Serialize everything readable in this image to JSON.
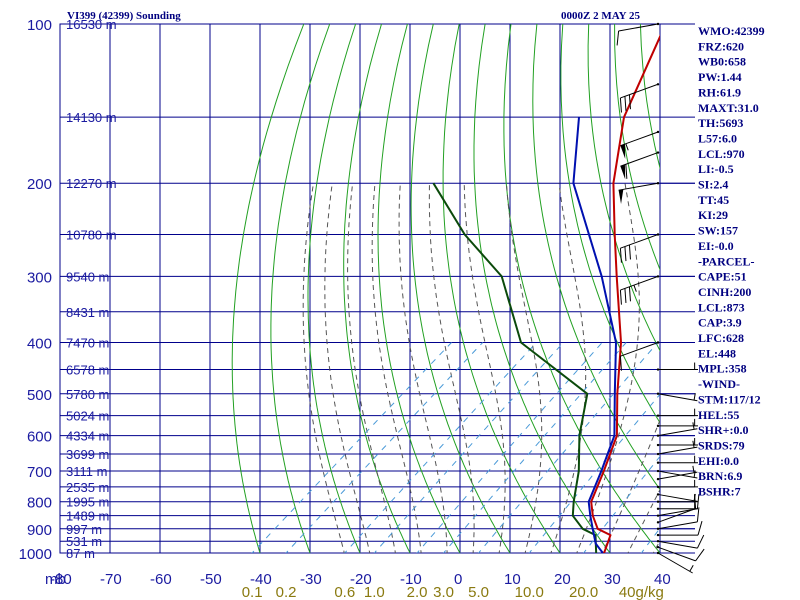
{
  "header": {
    "title": "VI399 (42399) Sounding",
    "time": "0000Z  2 MAY 25"
  },
  "indices": [
    "WMO:42399",
    "FRZ:620",
    "WB0:658",
    "PW:1.44",
    "RH:61.9",
    "MAXT:31.0",
    "TH:5693",
    "L57:6.0",
    "LCL:970",
    "LI:-0.5",
    "SI:2.4",
    "TT:45",
    "KI:29",
    "SW:157",
    "EI:-0.0",
    "-PARCEL-",
    "CAPE:51",
    "CINH:200",
    "LCL:873",
    "CAP:3.9",
    "LFC:628",
    "EL:448",
    "MPL:358",
    "-WIND-",
    "STM:117/12",
    "HEL:55",
    "SHR+:0.0",
    "SRDS:79",
    "EHI:0.0",
    "BRN:6.9",
    "BSHR:7"
  ],
  "colors": {
    "background": "#ffffff",
    "grid": "#00008b",
    "dry_adiabat": "#22a022",
    "moist_adiabat": "#555555",
    "mixing_ratio": "#4a9ad8",
    "temperature": "#c00000",
    "dewpoint": "#0b4a0b",
    "parcel": "#0010b0",
    "wind": "#000000"
  },
  "chart_data": {
    "type": "line",
    "subtype": "skew-T log-P",
    "ylabel": "mb",
    "xlabel": "",
    "ylim": [
      1000,
      100
    ],
    "xlim": [
      -80,
      40
    ],
    "y_scale": "log",
    "grid": true,
    "pressure_ticks": [
      100,
      200,
      300,
      400,
      500,
      600,
      700,
      800,
      900,
      1000
    ],
    "pressure_tick_labels": [
      "100",
      "200",
      "300",
      "400",
      "500",
      "600",
      "700",
      "800",
      "900",
      "1000"
    ],
    "temp_tick_labels": [
      "mb",
      "-80",
      "-70",
      "-60",
      "-50",
      "-40",
      "-30",
      "-20",
      "-10",
      "0",
      "10",
      "20",
      "30",
      "40"
    ],
    "mixing_ratio_labels": [
      "0.1",
      "0.2",
      "0.6",
      "1.0",
      "2.0",
      "3.0",
      "5.0",
      "10.0",
      "20.0",
      "40g/kg"
    ],
    "height_levels": [
      {
        "p": 100,
        "label": "16530 m"
      },
      {
        "p": 150,
        "label": "14130 m"
      },
      {
        "p": 200,
        "label": "12270 m"
      },
      {
        "p": 250,
        "label": "10780 m"
      },
      {
        "p": 300,
        "label": "9540 m"
      },
      {
        "p": 350,
        "label": "8431 m"
      },
      {
        "p": 400,
        "label": "7470 m"
      },
      {
        "p": 450,
        "label": "6578 m"
      },
      {
        "p": 500,
        "label": "5780 m"
      },
      {
        "p": 550,
        "label": "5024 m"
      },
      {
        "p": 600,
        "label": "4334 m"
      },
      {
        "p": 650,
        "label": "3699 m"
      },
      {
        "p": 700,
        "label": "3111 m"
      },
      {
        "p": 750,
        "label": "2535 m"
      },
      {
        "p": 800,
        "label": "1995 m"
      },
      {
        "p": 850,
        "label": "1489 m"
      },
      {
        "p": 900,
        "label": "997 m"
      },
      {
        "p": 950,
        "label": "531 m"
      },
      {
        "p": 1000,
        "label": "87 m"
      }
    ],
    "series": [
      {
        "key": "temperature",
        "p": [
          1005,
          925,
          900,
          850,
          800,
          700,
          600,
          500,
          400,
          300,
          250,
          200,
          150,
          100
        ],
        "t": [
          29.0,
          26.0,
          22.0,
          18.0,
          14.5,
          10.0,
          4.5,
          -5.0,
          -16.0,
          -32.0,
          -42.0,
          -54.0,
          -67.0,
          -80.0
        ]
      },
      {
        "key": "dewpoint",
        "p": [
          1005,
          925,
          900,
          850,
          800,
          700,
          600,
          500,
          400,
          300,
          250,
          200
        ],
        "t": [
          27.5,
          23.0,
          19.0,
          14.0,
          11.0,
          5.0,
          -3.0,
          -11.0,
          -36.0,
          -55.0,
          -72.0,
          -90.0
        ]
      },
      {
        "key": "parcel",
        "p": [
          1005,
          960,
          900,
          850,
          800,
          700,
          600,
          500,
          400,
          300,
          200,
          150
        ],
        "t": [
          29.0,
          25.0,
          21.0,
          17.5,
          14.0,
          9.5,
          4.0,
          -5.5,
          -17.0,
          -35.0,
          -62.0,
          -76.0
        ]
      }
    ],
    "winds": [
      {
        "p": 1000,
        "dir": 120,
        "spd": 5
      },
      {
        "p": 975,
        "dir": 110,
        "spd": 10
      },
      {
        "p": 950,
        "dir": 100,
        "spd": 10
      },
      {
        "p": 925,
        "dir": 90,
        "spd": 10
      },
      {
        "p": 900,
        "dir": 80,
        "spd": 10
      },
      {
        "p": 875,
        "dir": 70,
        "spd": 10
      },
      {
        "p": 850,
        "dir": 80,
        "spd": 10
      },
      {
        "p": 825,
        "dir": 90,
        "spd": 5
      },
      {
        "p": 800,
        "dir": 90,
        "spd": 5
      },
      {
        "p": 775,
        "dir": 100,
        "spd": 5
      },
      {
        "p": 750,
        "dir": 90,
        "spd": 5
      },
      {
        "p": 725,
        "dir": 80,
        "spd": 5
      },
      {
        "p": 700,
        "dir": 100,
        "spd": 5
      },
      {
        "p": 675,
        "dir": 90,
        "spd": 5
      },
      {
        "p": 650,
        "dir": 80,
        "spd": 5
      },
      {
        "p": 625,
        "dir": 90,
        "spd": 5
      },
      {
        "p": 600,
        "dir": 80,
        "spd": 5
      },
      {
        "p": 575,
        "dir": 90,
        "spd": 5
      },
      {
        "p": 550,
        "dir": 90,
        "spd": 5
      },
      {
        "p": 500,
        "dir": 100,
        "spd": 5
      },
      {
        "p": 450,
        "dir": 90,
        "spd": 5
      },
      {
        "p": 400,
        "dir": 250,
        "spd": 10
      },
      {
        "p": 300,
        "dir": 250,
        "spd": 35
      },
      {
        "p": 250,
        "dir": 250,
        "spd": 30
      },
      {
        "p": 200,
        "dir": 260,
        "spd": 50
      },
      {
        "p": 175,
        "dir": 250,
        "spd": 60
      },
      {
        "p": 160,
        "dir": 250,
        "spd": 55
      },
      {
        "p": 130,
        "dir": 250,
        "spd": 30
      },
      {
        "p": 100,
        "dir": 260,
        "spd": 10
      }
    ]
  }
}
